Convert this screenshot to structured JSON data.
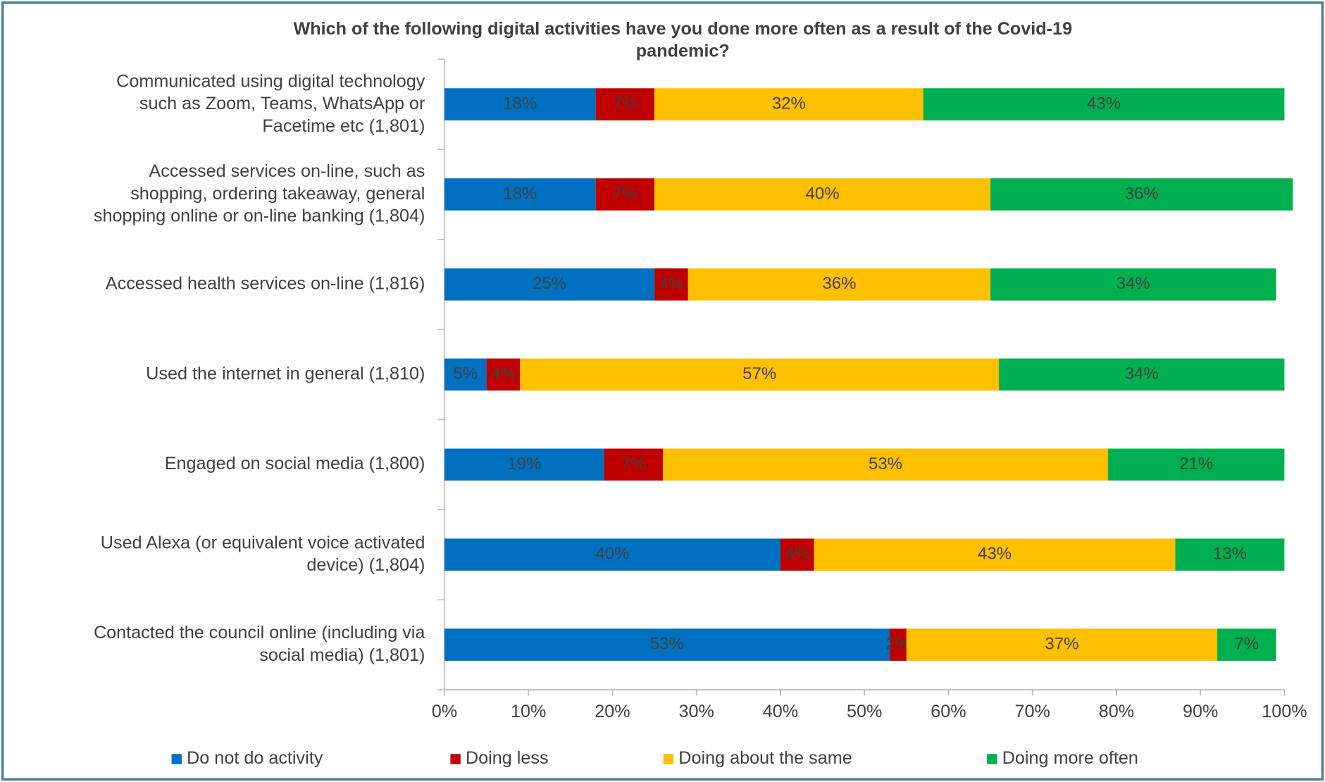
{
  "chart_data": {
    "type": "stacked-barh",
    "title": "Which of the following digital activities have you done more often as a result of the Covid-19\npandemic?",
    "categories": [
      "Communicated using digital technology\nsuch as Zoom, Teams, WhatsApp or\nFacetime etc (1,801)",
      "Accessed services on-line, such as\nshopping, ordering takeaway, general\nshopping online or on-line banking (1,804)",
      "Accessed health services on-line (1,816)",
      "Used the internet in general (1,810)",
      "Engaged on social media (1,800)",
      "Used Alexa (or equivalent voice activated\ndevice) (1,804)",
      "Contacted the council online (including via\nsocial media) (1,801)"
    ],
    "series": [
      {
        "name": "Do not do activity",
        "color": "#0070c0",
        "values": [
          18,
          18,
          25,
          5,
          19,
          40,
          53
        ],
        "value_labels": [
          "18%",
          "18%",
          "25%",
          "5%",
          "19%",
          "40%",
          "53%"
        ]
      },
      {
        "name": "Doing less",
        "color": "#c00000",
        "values": [
          7,
          7,
          4,
          4,
          7,
          4,
          2
        ],
        "value_labels": [
          "7%",
          "7%",
          "4%",
          "4%",
          "7%",
          "4%",
          "2%"
        ]
      },
      {
        "name": "Doing about the same",
        "color": "#ffc000",
        "values": [
          32,
          40,
          36,
          57,
          53,
          43,
          37
        ],
        "value_labels": [
          "32%",
          "40%",
          "36%",
          "57%",
          "53%",
          "43%",
          "37%"
        ]
      },
      {
        "name": "Doing more often",
        "color": "#00b050",
        "values": [
          43,
          36,
          34,
          34,
          21,
          13,
          7
        ],
        "value_labels": [
          "43%",
          "36%",
          "34%",
          "34%",
          "21%",
          "13%",
          "7%"
        ]
      }
    ],
    "xlim": [
      0,
      100
    ],
    "xticks": [
      {
        "value": 0,
        "label": "0%"
      },
      {
        "value": 10,
        "label": "10%"
      },
      {
        "value": 20,
        "label": "20%"
      },
      {
        "value": 30,
        "label": "30%"
      },
      {
        "value": 40,
        "label": "40%"
      },
      {
        "value": 50,
        "label": "50%"
      },
      {
        "value": 60,
        "label": "60%"
      },
      {
        "value": 70,
        "label": "70%"
      },
      {
        "value": 80,
        "label": "80%"
      },
      {
        "value": 90,
        "label": "90%"
      },
      {
        "value": 100,
        "label": "100%"
      }
    ],
    "legend": "bottom"
  }
}
